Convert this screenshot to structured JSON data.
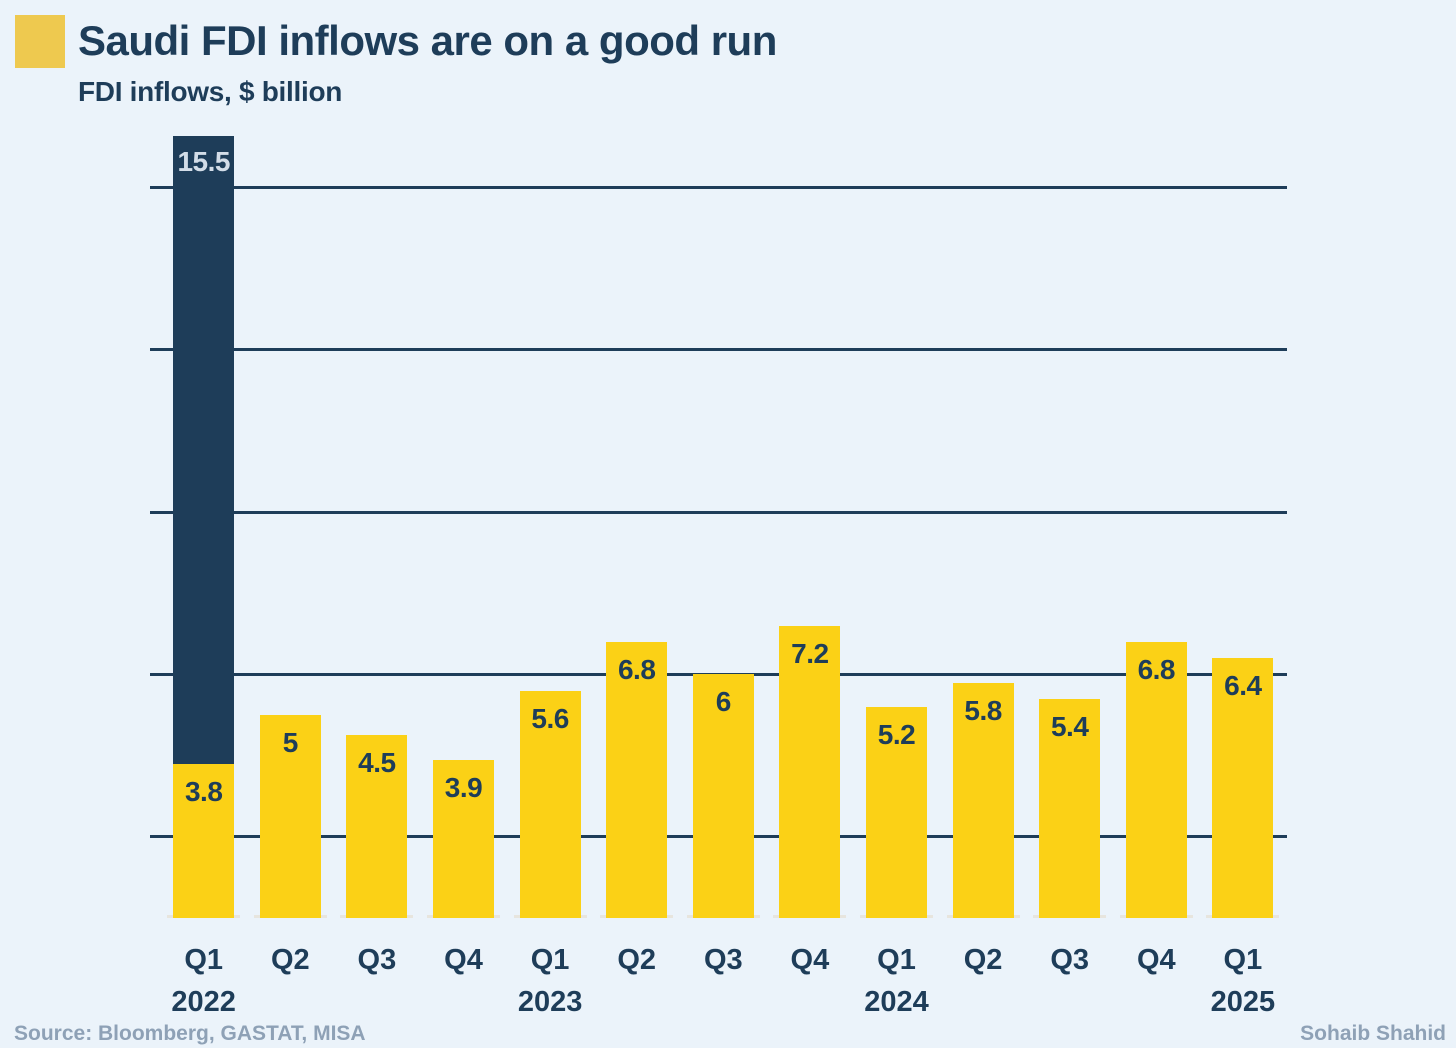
{
  "header": {
    "title": "Saudi FDI inflows are on a good run",
    "subtitle": "FDI inflows, $ billion"
  },
  "footer": {
    "source": "Source: Bloomberg, GASTAT, MISA",
    "credit": "Sohaib Shahid"
  },
  "colors": {
    "background": "#EBF3FA",
    "navy": "#1E3D59",
    "bar_yellow": "#FBD116",
    "title_square_yellow": "#EEC94F",
    "muted_text": "#8EA1B6",
    "light_value_label": "#D3DDE8"
  },
  "chart_data": {
    "type": "bar",
    "title": "Saudi FDI inflows are on a good run",
    "subtitle": "FDI inflows, $ billion",
    "xlabel": "",
    "ylabel": "FDI inflows, $ billion",
    "ylim": [
      0,
      19.3
    ],
    "grid": "horizontal",
    "gridline_values": [
      2,
      6,
      10,
      14,
      18
    ],
    "legend": "none",
    "value_labels": "inside bar top",
    "categories": [
      "Q1 2022",
      "Q2 2022",
      "Q3 2022",
      "Q4 2022",
      "Q1 2023",
      "Q2 2023",
      "Q3 2023",
      "Q4 2023",
      "Q1 2024",
      "Q2 2024",
      "Q3 2024",
      "Q4 2024",
      "Q1 2025"
    ],
    "values": [
      15.5,
      5,
      4.5,
      3.9,
      5.6,
      6.8,
      6,
      7.2,
      5.2,
      5.8,
      5.4,
      6.8,
      6.4
    ],
    "bars": [
      {
        "quarter": "Q1",
        "year": "2022",
        "value": 15.5,
        "label": "15.5",
        "base_value": 3.8,
        "base_label": "3.8",
        "style": "highlight-clipped"
      },
      {
        "quarter": "Q2",
        "value": 5,
        "label": "5"
      },
      {
        "quarter": "Q3",
        "value": 4.5,
        "label": "4.5"
      },
      {
        "quarter": "Q4",
        "value": 3.9,
        "label": "3.9"
      },
      {
        "quarter": "Q1",
        "year": "2023",
        "value": 5.6,
        "label": "5.6"
      },
      {
        "quarter": "Q2",
        "value": 6.8,
        "label": "6.8"
      },
      {
        "quarter": "Q3",
        "value": 6,
        "label": "6"
      },
      {
        "quarter": "Q4",
        "value": 7.2,
        "label": "7.2"
      },
      {
        "quarter": "Q1",
        "year": "2024",
        "value": 5.2,
        "label": "5.2"
      },
      {
        "quarter": "Q2",
        "value": 5.8,
        "label": "5.8"
      },
      {
        "quarter": "Q3",
        "value": 5.4,
        "label": "5.4"
      },
      {
        "quarter": "Q4",
        "value": 6.8,
        "label": "6.8"
      },
      {
        "quarter": "Q1",
        "year": "2025",
        "value": 6.4,
        "label": "6.4"
      }
    ]
  }
}
